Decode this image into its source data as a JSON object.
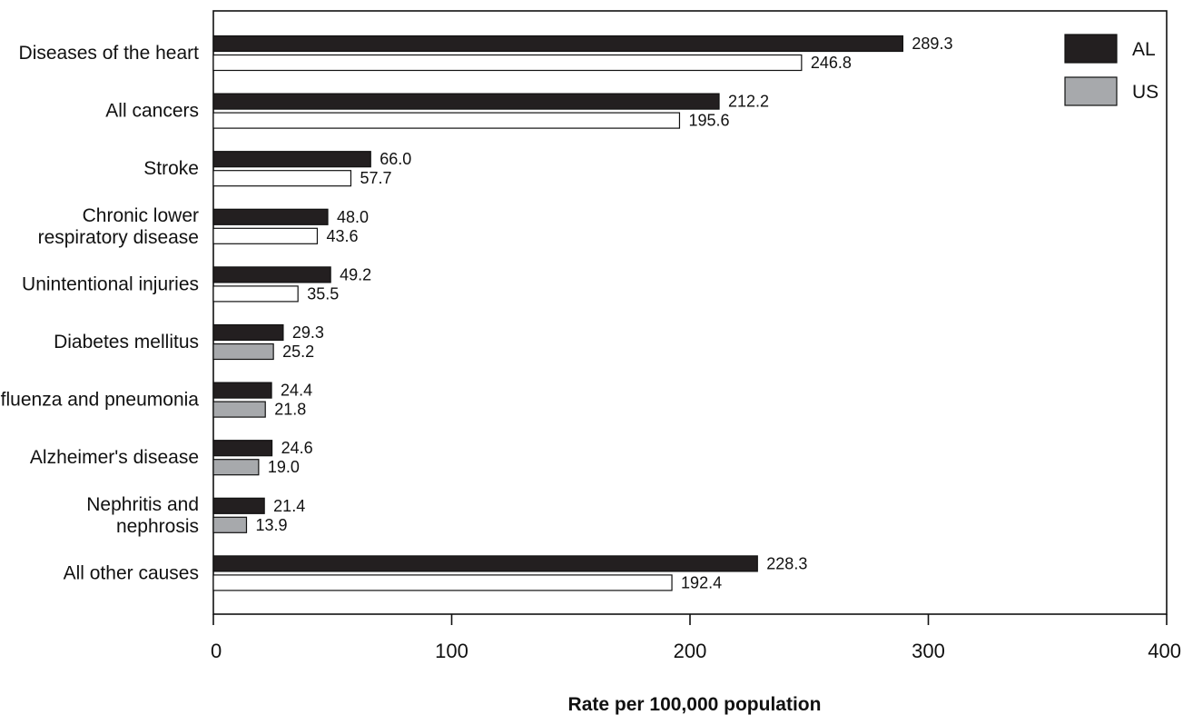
{
  "chart_data": {
    "type": "bar",
    "orientation": "horizontal",
    "categories": [
      [
        "Diseases of the heart"
      ],
      [
        "All cancers"
      ],
      [
        "Stroke"
      ],
      [
        "Chronic lower",
        "respiratory disease"
      ],
      [
        "Unintentional injuries"
      ],
      [
        "Diabetes mellitus"
      ],
      [
        "Influenza and pneumonia"
      ],
      [
        "Alzheimer's disease"
      ],
      [
        "Nephritis and",
        "nephrosis"
      ],
      [
        "All other causes"
      ]
    ],
    "series": [
      {
        "name": "AL",
        "color": "#231f20",
        "values": [
          289.3,
          212.2,
          66.0,
          48.0,
          49.2,
          29.3,
          24.4,
          24.6,
          21.4,
          228.3
        ],
        "labels": [
          "289.3",
          "212.2",
          "66.0",
          "48.0",
          "49.2",
          "29.3",
          "24.4",
          "24.6",
          "21.4",
          "228.3"
        ]
      },
      {
        "name": "US",
        "color": "#a7a9ac",
        "values": [
          246.8,
          195.6,
          57.7,
          43.6,
          35.5,
          25.2,
          21.8,
          19.0,
          13.9,
          192.4
        ],
        "labels": [
          "246.8",
          "195.6",
          "57.7",
          "43.6",
          "35.5",
          "25.2",
          "21.8",
          "19.0",
          "13.9",
          "192.4"
        ],
        "bar_colors": [
          "#ffffff",
          "#ffffff",
          "#ffffff",
          "#ffffff",
          "#ffffff",
          "#a7a9ac",
          "#a7a9ac",
          "#a7a9ac",
          "#a7a9ac",
          "#ffffff"
        ]
      }
    ],
    "xlim": [
      0,
      400
    ],
    "xticks": [
      0,
      100,
      200,
      300,
      400
    ],
    "xlabel": "Rate per 100,000 population",
    "ylabel": "",
    "title": "",
    "grid": false,
    "legend_position": "top-right"
  }
}
